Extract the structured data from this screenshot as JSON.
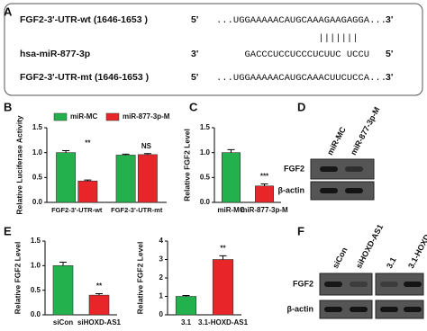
{
  "panel_labels": [
    "A",
    "B",
    "C",
    "D",
    "E",
    "F"
  ],
  "sequence_panel": {
    "rows": [
      {
        "label": "FGF2-3'-UTR-wt (1646-1653 )",
        "left_end": "5'",
        "right_end": "3'",
        "offset": 0,
        "segments": [
          {
            "text": "...UGGAAAAACAUGCAAA",
            "color": "#111111"
          },
          {
            "text": "GAAGAGG",
            "color": "#22a84a"
          },
          {
            "text": "A...",
            "color": "#111111"
          }
        ]
      },
      {
        "label": "hsa-miR-877-3p",
        "left_end": "3'",
        "right_end": "5'",
        "offset": 5,
        "segments": [
          {
            "text": "GACCCUCCUCCCU",
            "color": "#111111"
          },
          {
            "text": "CUUC UCC",
            "color": "#1f6fb5"
          },
          {
            "text": "U",
            "color": "#111111"
          }
        ]
      },
      {
        "label": "FGF2-3'-UTR-mt (1646-1653 )",
        "left_end": "5'",
        "right_end": "3'",
        "offset": 0,
        "segments": [
          {
            "text": "...UGGAAAAACAUGCAAA",
            "color": "#111111"
          },
          {
            "text": "CUUCUCCA",
            "color": "#e8262a"
          },
          {
            "text": "...",
            "color": "#111111"
          }
        ]
      }
    ],
    "pairing": "|||||||"
  },
  "chart_data": [
    {
      "type": "bar",
      "ylabel": "Relative Luciferase Activity",
      "categories": [
        "FGF2-3'-UTR-wt",
        "FGF2-3'-UTR-mt"
      ],
      "series": [
        {
          "name": "miR-MC",
          "color": "#22b14c",
          "values": [
            1.0,
            0.95
          ],
          "errors": [
            0.04,
            0.02
          ]
        },
        {
          "name": "miR-877-3p-M",
          "color": "#e8262a",
          "values": [
            0.43,
            0.96
          ],
          "errors": [
            0.02,
            0.02
          ]
        }
      ],
      "annotations": [
        "**",
        "NS"
      ],
      "ylim": [
        0,
        1.5
      ],
      "yticks": [
        {
          "value": 0,
          "label": "0.0"
        },
        {
          "value": 0.5,
          "label": "0.5"
        },
        {
          "value": 1,
          "label": "1.0"
        },
        {
          "value": 1.5,
          "label": "1.5"
        }
      ],
      "legend": "top"
    },
    {
      "type": "bar",
      "ylabel": "Relative FGF2 Level",
      "categories": [
        "miR-MC",
        "miR-877-3p-M"
      ],
      "values": [
        1.0,
        0.33
      ],
      "errors": [
        0.06,
        0.04
      ],
      "colors": [
        "#22b14c",
        "#e8262a"
      ],
      "annotations": [
        null,
        "***"
      ],
      "ylim": [
        0,
        1.5
      ],
      "yticks": [
        {
          "value": 0,
          "label": "0.0"
        },
        {
          "value": 0.5,
          "label": "0.5"
        },
        {
          "value": 1,
          "label": "1.0"
        },
        {
          "value": 1.5,
          "label": "1.5"
        }
      ]
    },
    {
      "type": "bar",
      "ylabel": "Relative FGF2 Level",
      "categories": [
        "siCon",
        "siHOXD-AS1"
      ],
      "values": [
        1.0,
        0.4
      ],
      "errors": [
        0.07,
        0.03
      ],
      "colors": [
        "#22b14c",
        "#e8262a"
      ],
      "annotations": [
        null,
        "**"
      ],
      "ylim": [
        0,
        1.5
      ],
      "yticks": [
        {
          "value": 0,
          "label": "0.0"
        },
        {
          "value": 0.5,
          "label": "0.5"
        },
        {
          "value": 1,
          "label": "1.0"
        },
        {
          "value": 1.5,
          "label": "1.5"
        }
      ]
    },
    {
      "type": "bar",
      "ylabel": "Relative FGF2 Level",
      "categories": [
        "3.1",
        "3.1-HOXD-AS1"
      ],
      "values": [
        1.0,
        3.0
      ],
      "errors": [
        0.05,
        0.2
      ],
      "colors": [
        "#22b14c",
        "#e8262a"
      ],
      "annotations": [
        null,
        "**"
      ],
      "ylim": [
        0,
        4
      ],
      "yticks": [
        0,
        1,
        2,
        3,
        4
      ]
    }
  ],
  "blot_D": {
    "lanes": [
      "miR-MC",
      "miR-877-3p-M"
    ],
    "rows": [
      "FGF2",
      "β-actin"
    ]
  },
  "blot_F": {
    "lanes": [
      "siCon",
      "siHOXD-AS1",
      "3.1",
      "3.1-HOXD-AS1"
    ],
    "rows": [
      "FGF2",
      "β-actin"
    ]
  }
}
